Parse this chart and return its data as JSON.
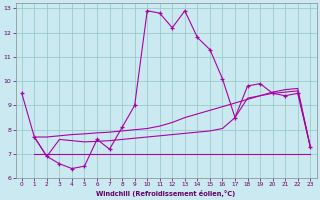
{
  "xlabel": "Windchill (Refroidissement éolien,°C)",
  "bg_color": "#cbe9f0",
  "line_color": "#aa00aa",
  "grid_color": "#99cccc",
  "xlim": [
    -0.5,
    23.5
  ],
  "ylim": [
    6,
    13.2
  ],
  "yticks": [
    6,
    7,
    8,
    9,
    10,
    11,
    12,
    13
  ],
  "xticks": [
    0,
    1,
    2,
    3,
    4,
    5,
    6,
    7,
    8,
    9,
    10,
    11,
    12,
    13,
    14,
    15,
    16,
    17,
    18,
    19,
    20,
    21,
    22,
    23
  ],
  "main_series": [
    [
      0,
      9.5
    ],
    [
      1,
      7.7
    ],
    [
      2,
      6.9
    ],
    [
      3,
      6.6
    ],
    [
      4,
      6.4
    ],
    [
      5,
      6.5
    ],
    [
      6,
      7.6
    ],
    [
      7,
      7.2
    ],
    [
      8,
      8.1
    ],
    [
      9,
      9.0
    ],
    [
      10,
      12.9
    ],
    [
      11,
      12.8
    ],
    [
      12,
      12.2
    ],
    [
      13,
      12.9
    ],
    [
      14,
      11.8
    ],
    [
      15,
      11.3
    ],
    [
      16,
      10.1
    ],
    [
      17,
      8.5
    ],
    [
      18,
      9.8
    ],
    [
      19,
      9.9
    ],
    [
      20,
      9.5
    ],
    [
      21,
      9.4
    ],
    [
      22,
      9.5
    ],
    [
      23,
      7.3
    ]
  ],
  "trend1": [
    [
      1,
      7.7
    ],
    [
      2,
      7.7
    ],
    [
      3,
      7.75
    ],
    [
      4,
      7.8
    ],
    [
      5,
      7.83
    ],
    [
      6,
      7.87
    ],
    [
      7,
      7.9
    ],
    [
      8,
      7.95
    ],
    [
      9,
      8.0
    ],
    [
      10,
      8.05
    ],
    [
      11,
      8.15
    ],
    [
      12,
      8.3
    ],
    [
      13,
      8.5
    ],
    [
      14,
      8.65
    ],
    [
      15,
      8.8
    ],
    [
      16,
      8.95
    ],
    [
      17,
      9.1
    ],
    [
      18,
      9.25
    ],
    [
      19,
      9.4
    ],
    [
      20,
      9.55
    ],
    [
      21,
      9.65
    ],
    [
      22,
      9.7
    ],
    [
      23,
      7.3
    ]
  ],
  "trend2": [
    [
      1,
      7.7
    ],
    [
      2,
      6.9
    ],
    [
      3,
      7.6
    ],
    [
      4,
      7.55
    ],
    [
      5,
      7.5
    ],
    [
      6,
      7.52
    ],
    [
      7,
      7.55
    ],
    [
      8,
      7.6
    ],
    [
      9,
      7.65
    ],
    [
      10,
      7.7
    ],
    [
      11,
      7.75
    ],
    [
      12,
      7.8
    ],
    [
      13,
      7.85
    ],
    [
      14,
      7.9
    ],
    [
      15,
      7.95
    ],
    [
      16,
      8.05
    ],
    [
      17,
      8.5
    ],
    [
      18,
      9.3
    ],
    [
      19,
      9.4
    ],
    [
      20,
      9.5
    ],
    [
      21,
      9.55
    ],
    [
      22,
      9.6
    ],
    [
      23,
      7.3
    ]
  ],
  "flat_line": [
    [
      1,
      7.0
    ],
    [
      23,
      7.0
    ]
  ]
}
